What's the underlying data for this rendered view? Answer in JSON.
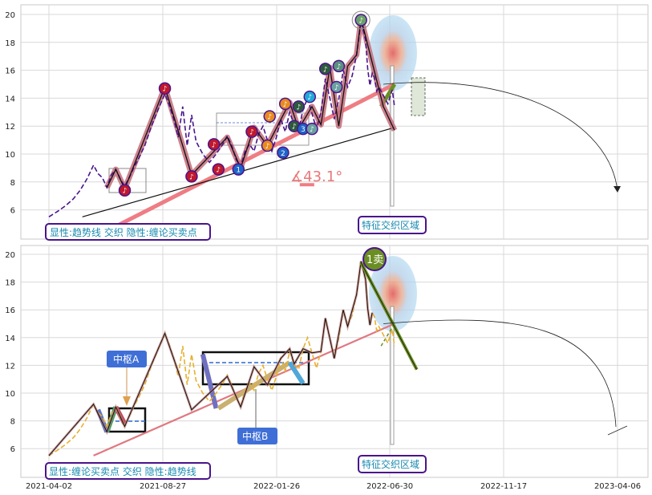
{
  "chart_data": [
    {
      "type": "line",
      "panel": "top",
      "ylim": [
        5,
        20.6
      ],
      "yticks": [
        "6",
        "8",
        "10",
        "12",
        "14",
        "16",
        "18",
        "20"
      ],
      "legend_text": "显性:趋势线 交织 隐性:缠论买卖点",
      "zone_text": "特征交织区域",
      "angle_text": "∡43.1°",
      "price": [
        [
          0,
          5.5
        ],
        [
          8,
          5.9
        ],
        [
          15,
          6.3
        ],
        [
          22,
          6.8
        ],
        [
          28,
          7.4
        ],
        [
          34,
          8.2
        ],
        [
          40,
          9.2
        ],
        [
          44,
          8.6
        ],
        [
          48,
          8.3
        ],
        [
          52,
          7.6
        ],
        [
          56,
          8.5
        ],
        [
          60,
          8.9
        ],
        [
          64,
          8.2
        ],
        [
          68,
          7.7
        ],
        [
          72,
          8.3
        ],
        [
          76,
          9.0
        ],
        [
          80,
          9.6
        ],
        [
          86,
          10.6
        ],
        [
          92,
          12.0
        ],
        [
          98,
          13.2
        ],
        [
          104,
          14.3
        ],
        [
          108,
          13.5
        ],
        [
          112,
          12.5
        ],
        [
          116,
          11.2
        ],
        [
          120,
          13.4
        ],
        [
          124,
          10.6
        ],
        [
          128,
          12.8
        ],
        [
          132,
          10.9
        ],
        [
          138,
          10.0
        ],
        [
          144,
          9.4
        ],
        [
          150,
          10.0
        ],
        [
          156,
          10.7
        ],
        [
          160,
          11.3
        ],
        [
          164,
          10.6
        ],
        [
          168,
          9.6
        ],
        [
          172,
          9.1
        ],
        [
          176,
          10.2
        ],
        [
          180,
          10.7
        ],
        [
          184,
          10.2
        ],
        [
          188,
          11.4
        ],
        [
          192,
          12.0
        ],
        [
          196,
          11.0
        ],
        [
          200,
          10.2
        ],
        [
          204,
          11.2
        ],
        [
          208,
          12.5
        ],
        [
          212,
          11.6
        ],
        [
          216,
          13.0
        ],
        [
          220,
          12.1
        ],
        [
          224,
          11.7
        ],
        [
          228,
          13.2
        ],
        [
          232,
          14.0
        ],
        [
          236,
          12.9
        ],
        [
          240,
          11.8
        ],
        [
          244,
          13.0
        ],
        [
          248,
          15.4
        ],
        [
          252,
          14.0
        ],
        [
          256,
          12.5
        ],
        [
          260,
          13.9
        ],
        [
          264,
          16.0
        ],
        [
          268,
          14.8
        ],
        [
          272,
          15.6
        ],
        [
          276,
          17.1
        ],
        [
          280,
          19.5
        ],
        [
          284,
          18.2
        ],
        [
          286,
          16.1
        ],
        [
          288,
          14.9
        ],
        [
          290,
          15.8
        ],
        [
          292,
          15.5
        ],
        [
          294,
          14.5
        ],
        [
          296,
          14.8
        ],
        [
          300,
          14.2
        ],
        [
          304,
          13.6
        ],
        [
          308,
          14.6
        ],
        [
          310,
          13.4
        ]
      ],
      "zigzag": [
        [
          52,
          7.6
        ],
        [
          60,
          8.9
        ],
        [
          68,
          7.5
        ],
        [
          104,
          14.8
        ],
        [
          128,
          8.5
        ],
        [
          160,
          11.2
        ],
        [
          172,
          9.0
        ],
        [
          184,
          11.9
        ],
        [
          196,
          10.6
        ],
        [
          216,
          13.7
        ],
        [
          224,
          11.8
        ],
        [
          236,
          13.4
        ],
        [
          244,
          12.1
        ],
        [
          252,
          16.2
        ],
        [
          260,
          12.0
        ],
        [
          268,
          16.3
        ],
        [
          276,
          17.1
        ],
        [
          280,
          19.7
        ],
        [
          300,
          13.4
        ],
        [
          310,
          11.7
        ]
      ],
      "trendline": [
        [
          40,
          4.0
        ],
        [
          310,
          15.0
        ]
      ],
      "bottom_line": [
        [
          30,
          5.5
        ],
        [
          310,
          11.9
        ]
      ],
      "buy_sell_points": [
        {
          "label": "♪",
          "x": 68,
          "y": 7.4,
          "color": "#c0182c"
        },
        {
          "label": "♪",
          "x": 104,
          "y": 14.7,
          "color": "#c0182c"
        },
        {
          "label": "♪",
          "x": 128,
          "y": 8.4,
          "color": "#c0182c"
        },
        {
          "label": "1",
          "x": 170,
          "y": 8.9,
          "color": "#1e64c8"
        },
        {
          "label": "♪",
          "x": 152,
          "y": 8.9,
          "color": "#c0182c"
        },
        {
          "label": "♪",
          "x": 148,
          "y": 10.7,
          "color": "#c0182c"
        },
        {
          "label": "♪",
          "x": 182,
          "y": 11.6,
          "color": "#c0182c"
        },
        {
          "label": "♪",
          "x": 196,
          "y": 10.6,
          "color": "#e88a20"
        },
        {
          "label": "♪",
          "x": 198,
          "y": 12.7,
          "color": "#e88a20"
        },
        {
          "label": "♪",
          "x": 212,
          "y": 13.6,
          "color": "#e88a20"
        },
        {
          "label": "2",
          "x": 210,
          "y": 10.1,
          "color": "#1e64c8"
        },
        {
          "label": "♪",
          "x": 220,
          "y": 12.0,
          "color": "#2c5a3c"
        },
        {
          "label": "♪",
          "x": 224,
          "y": 13.4,
          "color": "#2c5a3c"
        },
        {
          "label": "3",
          "x": 228,
          "y": 11.8,
          "color": "#1e64c8"
        },
        {
          "label": "♪",
          "x": 236,
          "y": 11.8,
          "color": "#6aa0a0"
        },
        {
          "label": "♪",
          "x": 234,
          "y": 14.1,
          "color": "#20a8d8"
        },
        {
          "label": "♪",
          "x": 248,
          "y": 16.1,
          "color": "#2c5a3c"
        },
        {
          "label": "♪",
          "x": 260,
          "y": 16.3,
          "color": "#5a9080"
        },
        {
          "label": "♪",
          "x": 258,
          "y": 14.8,
          "color": "#6aa0a0"
        },
        {
          "label": "♪",
          "x": 280,
          "y": 19.6,
          "color": "#6aa06a"
        }
      ]
    },
    {
      "type": "line",
      "panel": "bottom",
      "ylim": [
        5,
        20.6
      ],
      "yticks": [
        "6",
        "8",
        "10",
        "12",
        "14",
        "16",
        "18",
        "20"
      ],
      "xticks": [
        "2021-04-02",
        "2021-08-27",
        "2022-01-26",
        "2022-06-30",
        "2022-11-17",
        "2023-04-06"
      ],
      "legend_text": "显性:缠论买卖点 交织 隐性:趋势线",
      "zone_text": "特征交织区域",
      "labels": {
        "center_a": "中枢A",
        "center_b": "中枢B",
        "sell_point": "1卖"
      },
      "price": [
        [
          0,
          5.5
        ],
        [
          8,
          5.9
        ],
        [
          15,
          6.3
        ],
        [
          22,
          6.8
        ],
        [
          28,
          7.4
        ],
        [
          34,
          8.2
        ],
        [
          40,
          9.2
        ],
        [
          44,
          8.6
        ],
        [
          48,
          8.3
        ],
        [
          52,
          7.6
        ],
        [
          56,
          8.5
        ],
        [
          60,
          8.9
        ],
        [
          64,
          8.2
        ],
        [
          68,
          7.7
        ],
        [
          72,
          8.3
        ],
        [
          76,
          9.0
        ],
        [
          80,
          9.6
        ],
        [
          86,
          10.6
        ],
        [
          92,
          12.0
        ],
        [
          98,
          13.2
        ],
        [
          104,
          14.3
        ],
        [
          108,
          13.5
        ],
        [
          112,
          12.5
        ],
        [
          116,
          11.2
        ],
        [
          120,
          13.4
        ],
        [
          124,
          10.6
        ],
        [
          128,
          12.8
        ],
        [
          132,
          10.9
        ],
        [
          138,
          10.0
        ],
        [
          144,
          9.4
        ],
        [
          150,
          10.0
        ],
        [
          156,
          10.7
        ],
        [
          160,
          11.3
        ],
        [
          164,
          10.6
        ],
        [
          168,
          9.6
        ],
        [
          172,
          9.1
        ],
        [
          176,
          10.2
        ],
        [
          180,
          10.7
        ],
        [
          184,
          10.2
        ],
        [
          188,
          11.4
        ],
        [
          192,
          12.0
        ],
        [
          196,
          11.0
        ],
        [
          200,
          10.2
        ],
        [
          204,
          11.2
        ],
        [
          208,
          12.5
        ],
        [
          212,
          11.6
        ],
        [
          216,
          13.0
        ],
        [
          220,
          12.1
        ],
        [
          224,
          11.7
        ],
        [
          228,
          13.2
        ],
        [
          232,
          14.0
        ],
        [
          236,
          12.9
        ],
        [
          240,
          11.8
        ],
        [
          244,
          13.0
        ],
        [
          248,
          15.4
        ],
        [
          252,
          14.0
        ],
        [
          256,
          12.5
        ],
        [
          260,
          13.9
        ],
        [
          264,
          16.0
        ],
        [
          268,
          14.8
        ],
        [
          272,
          15.6
        ],
        [
          276,
          17.1
        ],
        [
          280,
          19.5
        ],
        [
          284,
          18.2
        ],
        [
          286,
          16.1
        ],
        [
          288,
          14.9
        ],
        [
          290,
          15.8
        ],
        [
          292,
          15.5
        ],
        [
          294,
          14.5
        ],
        [
          296,
          14.8
        ],
        [
          300,
          14.2
        ],
        [
          304,
          13.6
        ],
        [
          308,
          14.6
        ],
        [
          310,
          13.4
        ]
      ],
      "zigzag": [
        [
          0,
          5.5
        ],
        [
          40,
          9.2
        ],
        [
          52,
          7.2
        ],
        [
          60,
          9.0
        ],
        [
          68,
          7.6
        ],
        [
          104,
          14.3
        ],
        [
          128,
          8.8
        ],
        [
          160,
          11.2
        ],
        [
          172,
          9.0
        ],
        [
          184,
          11.9
        ],
        [
          196,
          10.6
        ],
        [
          208,
          12.5
        ],
        [
          216,
          13.2
        ],
        [
          220,
          12.1
        ],
        [
          228,
          13.2
        ],
        [
          236,
          12.9
        ],
        [
          244,
          13.0
        ],
        [
          248,
          15.4
        ],
        [
          256,
          12.5
        ],
        [
          264,
          16.0
        ],
        [
          268,
          14.8
        ],
        [
          276,
          17.1
        ],
        [
          280,
          19.5
        ],
        [
          284,
          18.2
        ],
        [
          286,
          16.1
        ],
        [
          288,
          14.9
        ],
        [
          290,
          15.8
        ]
      ],
      "trendline": [
        [
          40,
          5.5
        ],
        [
          310,
          15.0
        ]
      ],
      "sell_line": [
        [
          280,
          19.4
        ],
        [
          330,
          11.7
        ]
      ]
    }
  ]
}
